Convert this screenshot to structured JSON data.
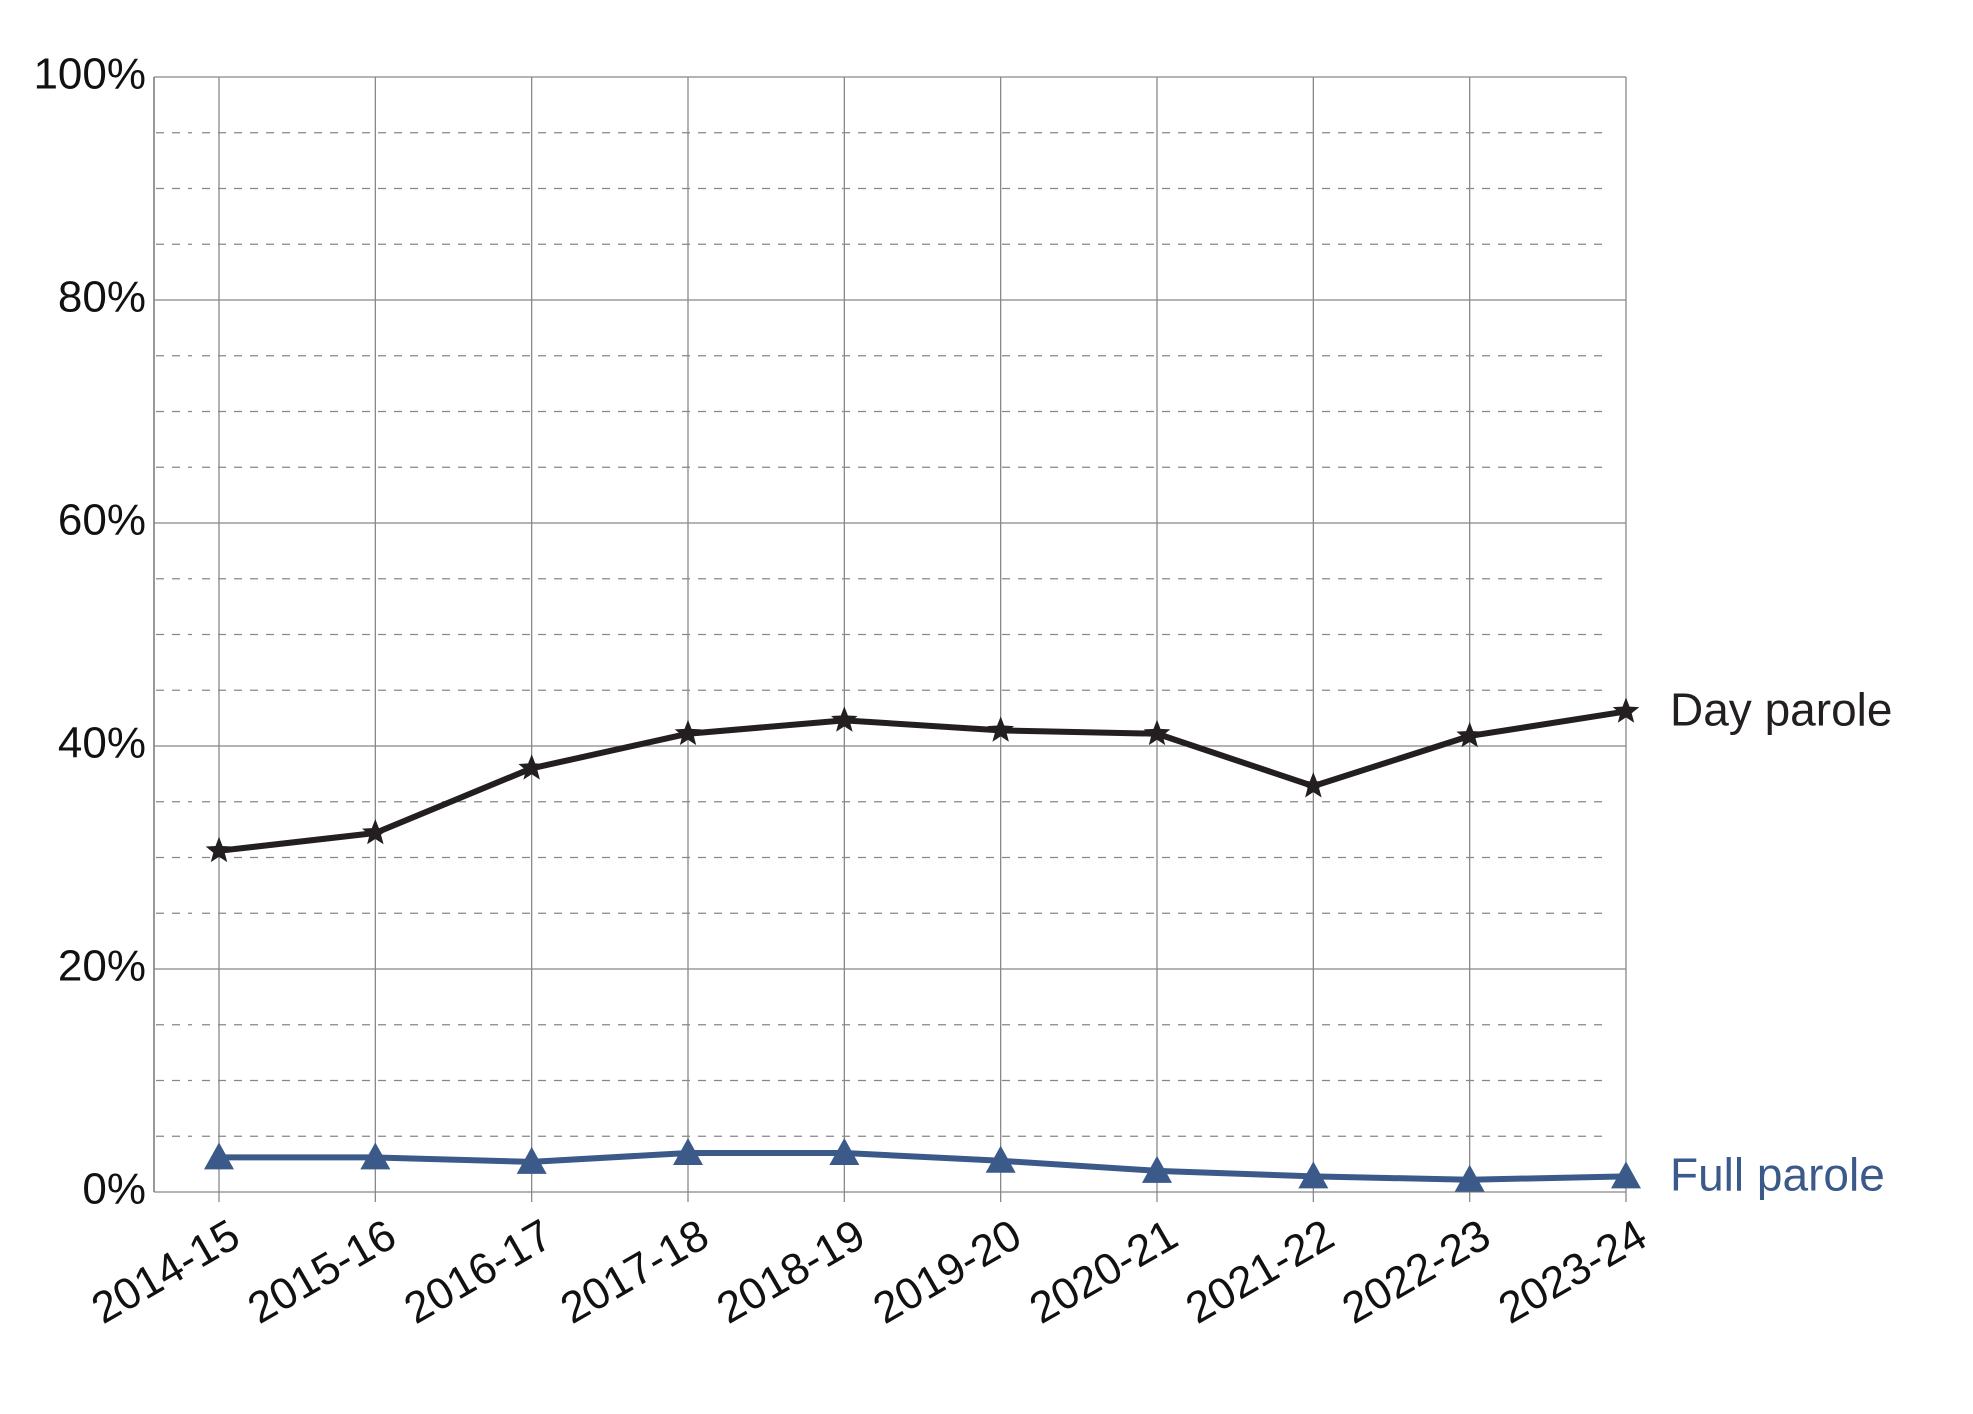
{
  "chart_data": {
    "type": "line",
    "categories": [
      "2014-15",
      "2015-16",
      "2016-17",
      "2017-18",
      "2018-19",
      "2019-20",
      "2020-21",
      "2021-22",
      "2022-23",
      "2023-24"
    ],
    "series": [
      {
        "name": "Day parole",
        "color": "#231f20",
        "marker": "star",
        "values": [
          30.6,
          32.2,
          38.0,
          41.1,
          42.3,
          41.4,
          41.1,
          36.4,
          40.9,
          43.1
        ]
      },
      {
        "name": "Full parole",
        "color": "#3b5a8a",
        "marker": "triangle",
        "values": [
          3.1,
          3.1,
          2.7,
          3.5,
          3.5,
          2.8,
          1.9,
          1.4,
          1.1,
          1.4
        ]
      }
    ],
    "ylim": [
      0,
      100
    ],
    "yticks": [
      {
        "value": 0,
        "label": "0%"
      },
      {
        "value": 20,
        "label": "20%"
      },
      {
        "value": 40,
        "label": "40%"
      },
      {
        "value": 60,
        "label": "60%"
      },
      {
        "value": 80,
        "label": "80%"
      },
      {
        "value": 100,
        "label": "100%"
      }
    ],
    "minor_yticks": [
      5,
      10,
      15,
      25,
      30,
      35,
      45,
      50,
      55,
      65,
      70,
      75,
      85,
      90,
      95
    ],
    "grid": true,
    "legend": "line-end"
  }
}
